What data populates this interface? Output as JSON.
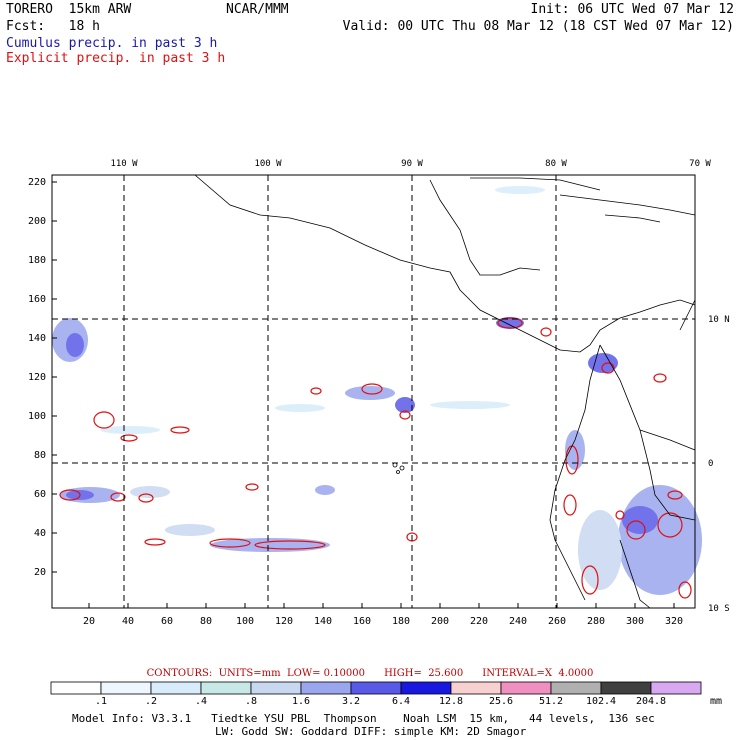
{
  "header": {
    "model": "TORERO  15km ARW",
    "org": "NCAR/MMM",
    "init": "Init: 06 UTC Wed 07 Mar 12",
    "fcst": "Fcst:   18 h",
    "valid": "Valid: 00 UTC Thu 08 Mar 12 (18 CST Wed 07 Mar 12)",
    "legend_cumulus": "Cumulus precip. in past 3 h",
    "legend_explicit": "Explicit precip. in past 3 h"
  },
  "map": {
    "lon_labels": [
      "110 W",
      "100 W",
      "90 W",
      "80 W",
      "70 W"
    ],
    "lat_labels": [
      "10 N",
      "0",
      "10 S"
    ],
    "x_ticks": [
      "20",
      "40",
      "60",
      "80",
      "100",
      "120",
      "140",
      "160",
      "180",
      "200",
      "220",
      "240",
      "260",
      "280",
      "300",
      "320"
    ],
    "y_ticks": [
      "20",
      "40",
      "60",
      "80",
      "100",
      "120",
      "140",
      "160",
      "180",
      "200",
      "220"
    ]
  },
  "contour_info": "CONTOURS:  UNITS=mm  LOW= 0.10000      HIGH=  25.600      INTERVAL=X  4.0000",
  "colorbar": {
    "labels": [
      ".1",
      ".2",
      ".4",
      ".8",
      "1.6",
      "3.2",
      "6.4",
      "12.8",
      "25.6",
      "51.2",
      "102.4",
      "204.8"
    ],
    "unit": "mm",
    "colors": [
      "#ffffff",
      "#eef6ff",
      "#d8ecfb",
      "#c8e8e8",
      "#c8d8f0",
      "#9aa6ee",
      "#5a5ae8",
      "#1818e0",
      "#f8d0d0",
      "#f090c0",
      "#b0b0b0",
      "#404040",
      "#d8a8f0"
    ]
  },
  "footer": {
    "line1": "Model Info: V3.3.1   Tiedtke YSU PBL  Thompson    Noah LSM  15 km,   44 levels,  136 sec",
    "line2": "LW: Godd SW: Goddard DIFF: simple KM: 2D Smagor"
  },
  "colors": {
    "cumulus": "#1a1aa8",
    "explicit": "#e01010",
    "grid": "#000000"
  }
}
